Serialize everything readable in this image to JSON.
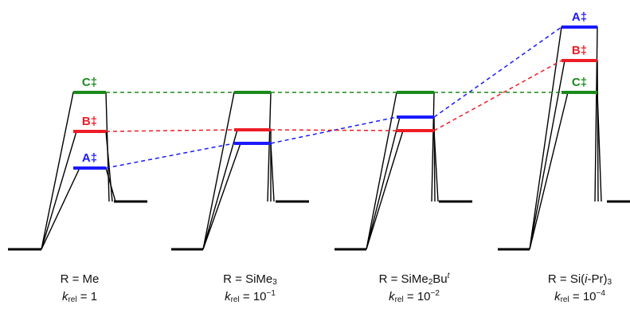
{
  "colors": {
    "A": "#1a1aff",
    "B": "#ee1c25",
    "C": "#1a8a1a",
    "profile": "#000000"
  },
  "ts_labels": {
    "A": "A‡",
    "B": "B‡",
    "C": "C‡"
  },
  "panels": [
    {
      "id": "me",
      "caption": {
        "prefix": "R = Me",
        "sub": "",
        "mid": "",
        "sup": "",
        "tail": "",
        "k_sym": "k",
        "k_sub": "rel",
        "k_rest": " = 1",
        "k_exp": ""
      },
      "order_top_to_bottom": [
        "C",
        "B",
        "A"
      ]
    },
    {
      "id": "sime3",
      "caption": {
        "prefix": "R = SiMe",
        "sub": "3",
        "mid": "",
        "sup": "",
        "tail": "",
        "k_sym": "k",
        "k_sub": "rel",
        "k_rest": " = 10",
        "k_exp": "−1"
      },
      "order_top_to_bottom": [
        "C",
        "B",
        "A"
      ]
    },
    {
      "id": "sime2but",
      "caption": {
        "prefix": "R = SiMe",
        "sub": "2",
        "mid": "Bu",
        "sup": "t",
        "tail": "",
        "k_sym": "k",
        "k_sub": "rel",
        "k_rest": " = 10",
        "k_exp": "−2"
      },
      "order_top_to_bottom": [
        "C",
        "A",
        "B"
      ]
    },
    {
      "id": "siipr3",
      "caption": {
        "prefix": "R = Si(",
        "sub": "",
        "mid": "i",
        "sup": "",
        "tail": "-Pr)",
        "tail_sub": "3",
        "k_sym": "k",
        "k_sub": "rel",
        "k_rest": " = 10",
        "k_exp": "−4"
      },
      "order_top_to_bottom": [
        "A",
        "B",
        "C"
      ]
    }
  ]
}
